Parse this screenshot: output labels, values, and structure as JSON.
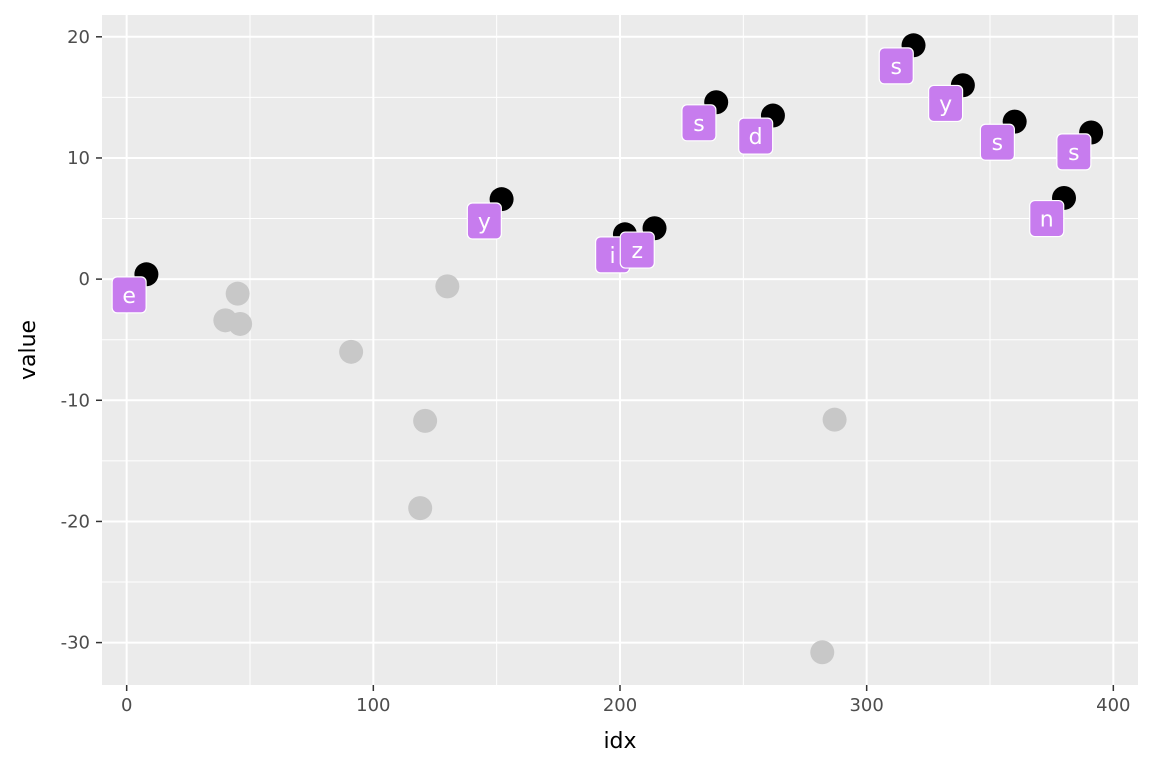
{
  "chart_data": {
    "type": "scatter",
    "title": "",
    "xlabel": "idx",
    "ylabel": "value",
    "xlim": [
      -10,
      410
    ],
    "ylim": [
      -33.5,
      21.8
    ],
    "x_ticks": [
      0,
      100,
      200,
      300,
      400
    ],
    "y_ticks": [
      20,
      10,
      0,
      -10,
      -20,
      -30
    ],
    "x_tick_labels": [
      "0",
      "100",
      "200",
      "300",
      "400"
    ],
    "y_tick_labels": [
      "20",
      "10",
      "0",
      "-10",
      "-20",
      "-30"
    ],
    "grid": true,
    "legend": "none",
    "colors": {
      "panel": "#ebebeb",
      "grid": "#ffffff",
      "highlighted": "#000000",
      "faded": "#c8c8c8",
      "label_fill": "#c77cee",
      "label_text": "#ffffff"
    },
    "series": [
      {
        "points": [
          {
            "x": 8,
            "y": 0.4
          },
          {
            "x": 152,
            "y": 6.6
          },
          {
            "x": 202,
            "y": 3.7
          },
          {
            "x": 214,
            "y": 4.2
          },
          {
            "x": 239,
            "y": 14.6
          },
          {
            "x": 262,
            "y": 13.5
          },
          {
            "x": 319,
            "y": 19.3
          },
          {
            "x": 339,
            "y": 16.0
          },
          {
            "x": 360,
            "y": 13.0
          },
          {
            "x": 380,
            "y": 6.7
          },
          {
            "x": 391,
            "y": 12.1
          }
        ]
      },
      {
        "points": [
          {
            "x": 40,
            "y": -3.4
          },
          {
            "x": 45,
            "y": -1.2
          },
          {
            "x": 46,
            "y": -3.7
          },
          {
            "x": 91,
            "y": -6.0
          },
          {
            "x": 119,
            "y": -18.9
          },
          {
            "x": 121,
            "y": -11.7
          },
          {
            "x": 130,
            "y": -0.6
          },
          {
            "x": 282,
            "y": -30.8
          },
          {
            "x": 287,
            "y": -11.6
          }
        ]
      }
    ],
    "labels": [
      {
        "text": "e",
        "x": 1,
        "y": -1.3
      },
      {
        "text": "y",
        "x": 145,
        "y": 4.8
      },
      {
        "text": "i",
        "x": 197,
        "y": 2.0
      },
      {
        "text": "z",
        "x": 207,
        "y": 2.4
      },
      {
        "text": "s",
        "x": 232,
        "y": 12.9
      },
      {
        "text": "d",
        "x": 255,
        "y": 11.8
      },
      {
        "text": "s",
        "x": 312,
        "y": 17.6
      },
      {
        "text": "y",
        "x": 332,
        "y": 14.5
      },
      {
        "text": "s",
        "x": 353,
        "y": 11.3
      },
      {
        "text": "n",
        "x": 373,
        "y": 5.0
      },
      {
        "text": "s",
        "x": 384,
        "y": 10.5
      }
    ]
  }
}
